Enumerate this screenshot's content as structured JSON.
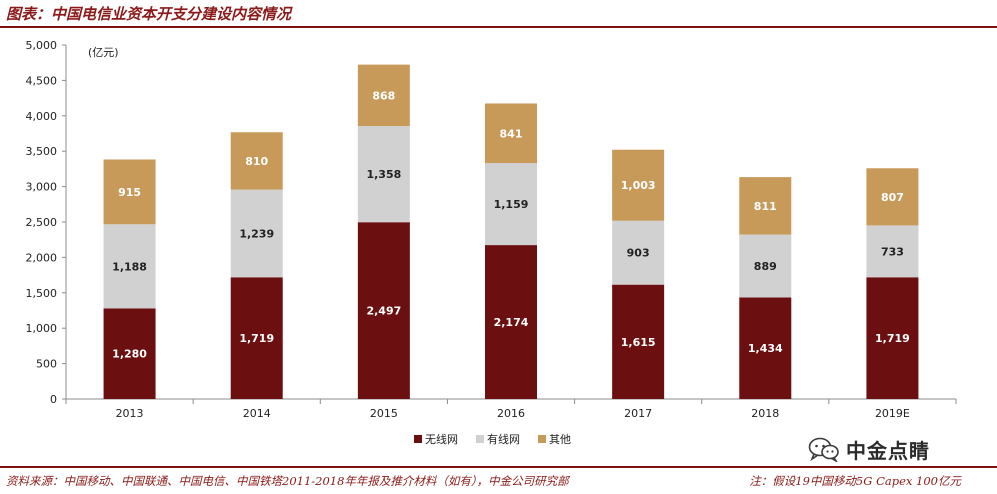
{
  "title": "图表：中国电信业资本开支分建设内容情况",
  "footer": {
    "source": "资料来源：中国移动、中国联通、中国电信、中国铁塔2011-2018年年报及推介材料（如有），中金公司研究部",
    "note": "注：假设19中国移动5G Capex 100亿元"
  },
  "watermark": {
    "text": "中金点睛",
    "icon": "wechat-bubbles-icon"
  },
  "chart_data": {
    "type": "bar",
    "stacked": true,
    "categories": [
      "2013",
      "2014",
      "2015",
      "2016",
      "2017",
      "2018",
      "2019E"
    ],
    "unit_label": "(亿元)",
    "ylim": [
      0,
      5000
    ],
    "yticks": [
      "0",
      "500",
      "1,000",
      "1,500",
      "2,000",
      "2,500",
      "3,000",
      "3,500",
      "4,000",
      "4,500",
      "5,000"
    ],
    "ytick_values": [
      0,
      500,
      1000,
      1500,
      2000,
      2500,
      3000,
      3500,
      4000,
      4500,
      5000
    ],
    "grid": false,
    "legend_position": "bottom-center",
    "series": [
      {
        "name": "无线网",
        "color": "#6b0f10",
        "values": [
          1280,
          1719,
          2497,
          2174,
          1615,
          1434,
          1719
        ],
        "labels": [
          "1,280",
          "1,719",
          "2,497",
          "2,174",
          "1,615",
          "1,434",
          "1,719"
        ]
      },
      {
        "name": "有线网",
        "color": "#d1d1d1",
        "values": [
          1188,
          1239,
          1358,
          1159,
          903,
          889,
          733
        ],
        "labels": [
          "1,188",
          "1,239",
          "1,358",
          "1,159",
          "903",
          "889",
          "733"
        ]
      },
      {
        "name": "其他",
        "color": "#c89a5a",
        "values": [
          915,
          810,
          868,
          841,
          1003,
          811,
          807
        ],
        "labels": [
          "915",
          "810",
          "868",
          "841",
          "1,003",
          "811",
          "807"
        ]
      }
    ]
  }
}
